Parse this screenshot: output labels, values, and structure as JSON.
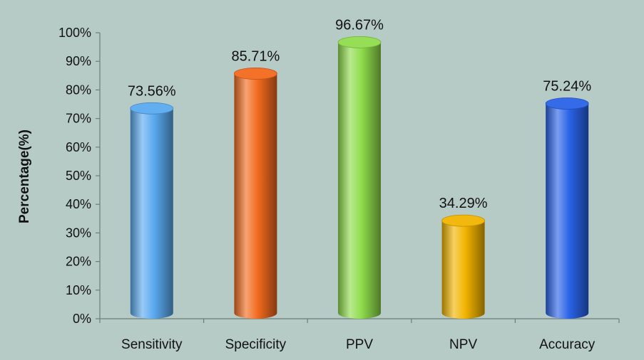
{
  "chart_data": {
    "type": "bar",
    "ylabel": "Percentage(%)",
    "ylim": [
      0,
      100
    ],
    "ytick_step": 10,
    "ytick_suffix": "%",
    "grid": false,
    "categories": [
      "Sensitivity",
      "Specificity",
      "PPV",
      "NPV",
      "Accuracy"
    ],
    "values": [
      73.56,
      85.71,
      96.67,
      34.29,
      75.24
    ],
    "data_labels": [
      "73.56%",
      "85.71%",
      "96.67%",
      "34.29%",
      "75.24%"
    ],
    "colors": [
      "#5aaaf0",
      "#f26a1e",
      "#8fdc4c",
      "#f2b400",
      "#2a63e8"
    ]
  }
}
